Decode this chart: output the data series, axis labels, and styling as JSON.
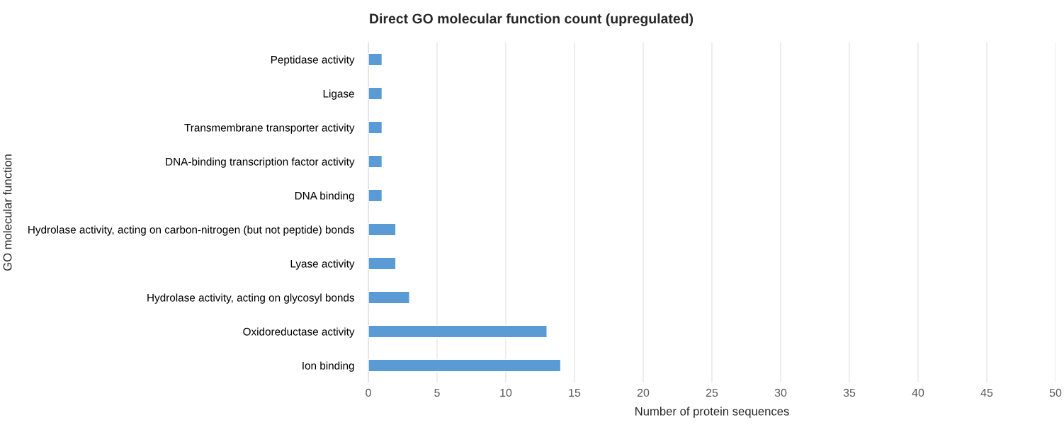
{
  "chart_data": {
    "type": "bar",
    "orientation": "horizontal",
    "title": "Direct GO molecular function count (upregulated)",
    "xlabel": "Number of protein sequences",
    "ylabel": "GO molecular function",
    "categories": [
      "Peptidase activity",
      "Ligase",
      "Transmembrane transporter activity",
      "DNA-binding transcription factor activity",
      "DNA binding",
      "Hydrolase activity, acting on carbon-nitrogen (but not peptide) bonds",
      "Lyase activity",
      "Hydrolase activity, acting on glycosyl bonds",
      "Oxidoreductase activity",
      "Ion binding"
    ],
    "values": [
      1,
      1,
      1,
      1,
      1,
      2,
      2,
      3,
      13,
      14
    ],
    "color": "#5b9bd5",
    "xlim": [
      0,
      50
    ],
    "xticks": [
      0,
      5,
      10,
      15,
      20,
      25,
      30,
      35,
      40,
      45,
      50
    ],
    "grid": "x"
  }
}
